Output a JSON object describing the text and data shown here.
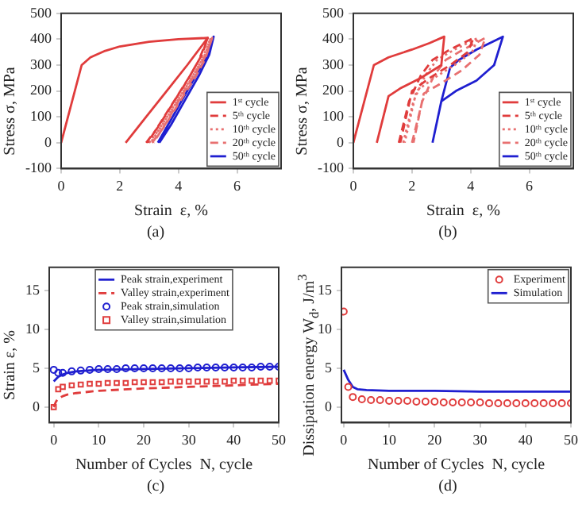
{
  "chart_data": [
    {
      "type": "line",
      "xlabel": "Strain  ε, %",
      "ylabel": "Stress  σ, MPa",
      "annotations": [
        "(a)"
      ],
      "xlim": [
        0,
        7.5
      ],
      "xticks": [
        0,
        2,
        4,
        6
      ],
      "ylim": [
        -100,
        500
      ],
      "yticks": [
        -100,
        0,
        100,
        200,
        300,
        400,
        500
      ],
      "legend": "bottom right",
      "grid": false,
      "series": [
        {
          "name": "1ˢᵗ cycle",
          "color": "#e03c3c",
          "line_style": "solid",
          "x": [
            0,
            0.7,
            1,
            1.5,
            2,
            3,
            4,
            5,
            4.3,
            3.6,
            2.9,
            2.2
          ],
          "values": [
            0,
            300,
            330,
            355,
            372,
            390,
            400,
            405,
            300,
            200,
            100,
            0
          ]
        },
        {
          "name": "5ᵗʰ cycle",
          "color": "#e03c3c",
          "line_style": "dashed",
          "x": [
            2.9,
            3.3,
            3.8,
            4.3,
            4.7,
            5.0,
            4.8,
            4.4,
            3.9,
            3.4,
            2.95
          ],
          "values": [
            0,
            60,
            150,
            240,
            320,
            405,
            340,
            260,
            170,
            80,
            0
          ]
        },
        {
          "name": "10ᵗʰ cycle",
          "color": "#e87070",
          "line_style": "dotted",
          "x": [
            3.0,
            3.4,
            3.9,
            4.4,
            4.8,
            5.1,
            4.9,
            4.5,
            4.0,
            3.5,
            3.05
          ],
          "values": [
            0,
            60,
            150,
            240,
            320,
            405,
            340,
            260,
            170,
            80,
            0
          ]
        },
        {
          "name": "20ᵗʰ cycle",
          "color": "#e87070",
          "line_style": "dashed",
          "x": [
            3.1,
            3.5,
            4.0,
            4.5,
            4.9,
            5.15,
            4.95,
            4.55,
            4.05,
            3.6,
            3.15
          ],
          "values": [
            0,
            60,
            150,
            240,
            320,
            405,
            340,
            260,
            170,
            80,
            0
          ]
        },
        {
          "name": "50ᵗʰ cycle",
          "color": "#1f1fd0",
          "line_style": "solid",
          "x": [
            3.3,
            3.7,
            4.2,
            4.6,
            5.0,
            5.2,
            5.05,
            4.7,
            4.2,
            3.75,
            3.35
          ],
          "values": [
            0,
            80,
            180,
            260,
            340,
            410,
            340,
            260,
            160,
            70,
            0
          ]
        }
      ]
    },
    {
      "type": "line",
      "xlabel": "Strain  ε, %",
      "ylabel": "Stress  σ, MPa",
      "annotations": [
        "(b)"
      ],
      "xlim": [
        0,
        7.5
      ],
      "xticks": [
        0,
        2,
        4,
        6
      ],
      "ylim": [
        -100,
        500
      ],
      "yticks": [
        -100,
        0,
        100,
        200,
        300,
        400,
        500
      ],
      "legend": "bottom right",
      "grid": false,
      "series": [
        {
          "name": "1ˢᵗ cycle",
          "color": "#e03c3c",
          "line_style": "solid",
          "x": [
            0,
            0.7,
            1.2,
            2,
            2.6,
            3.1,
            3.0,
            2.3,
            1.6,
            1.2,
            0.8
          ],
          "values": [
            0,
            300,
            330,
            360,
            385,
            410,
            300,
            250,
            210,
            180,
            0
          ]
        },
        {
          "name": "5ᵗʰ cycle",
          "color": "#e03c3c",
          "line_style": "dashed",
          "x": [
            1.55,
            1.9,
            2.3,
            2.7,
            3.3,
            4.1,
            3.9,
            3.3,
            2.6,
            2.0,
            1.6
          ],
          "values": [
            0,
            160,
            260,
            320,
            360,
            405,
            350,
            300,
            250,
            200,
            0
          ]
        },
        {
          "name": "10ᵗʰ cycle",
          "color": "#e87070",
          "line_style": "dotted",
          "x": [
            1.7,
            2.05,
            2.45,
            2.85,
            3.45,
            4.25,
            4.05,
            3.45,
            2.75,
            2.15,
            1.75
          ],
          "values": [
            0,
            160,
            260,
            320,
            360,
            405,
            350,
            300,
            250,
            200,
            0
          ]
        },
        {
          "name": "20ᵗʰ cycle",
          "color": "#e87070",
          "line_style": "dashed",
          "x": [
            2.0,
            2.35,
            2.75,
            3.15,
            3.75,
            4.5,
            4.3,
            3.7,
            3.0,
            2.4,
            2.05
          ],
          "values": [
            0,
            160,
            260,
            320,
            360,
            405,
            340,
            280,
            230,
            190,
            0
          ]
        },
        {
          "name": "50ᵗʰ cycle",
          "color": "#1f1fd0",
          "line_style": "solid",
          "x": [
            2.7,
            3.0,
            3.3,
            3.6,
            4.2,
            5.1,
            4.8,
            4.2,
            3.5,
            3.0
          ],
          "values": [
            0,
            160,
            290,
            320,
            360,
            410,
            300,
            240,
            200,
            160
          ]
        }
      ]
    },
    {
      "type": "line",
      "xlabel": "Number of Cycles  N, cycle",
      "ylabel": "Strain  ε, %",
      "annotations": [
        "(c)"
      ],
      "xlim": [
        -1,
        50
      ],
      "xticks": [
        0,
        10,
        20,
        30,
        40,
        50
      ],
      "ylim": [
        -2,
        18
      ],
      "yticks": [
        0,
        5,
        10,
        15
      ],
      "legend": "top",
      "grid": false,
      "series": [
        {
          "name": "Peak strain,experiment",
          "color": "#1f1fd0",
          "type": "line",
          "line_style": "solid",
          "marker": "none",
          "x": [
            0,
            1,
            2,
            3,
            5,
            10,
            20,
            30,
            40,
            50
          ],
          "values": [
            3.3,
            3.9,
            4.2,
            4.4,
            4.6,
            4.8,
            4.9,
            5.0,
            5.1,
            5.2
          ]
        },
        {
          "name": "Valley strain,experiment",
          "color": "#e03c3c",
          "type": "line",
          "line_style": "dashed",
          "marker": "none",
          "x": [
            0,
            0.5,
            1,
            2,
            3,
            5,
            10,
            20,
            30,
            40,
            50
          ],
          "values": [
            0,
            0.7,
            1.1,
            1.4,
            1.6,
            1.8,
            2.1,
            2.4,
            2.6,
            2.8,
            3.0
          ]
        },
        {
          "name": "Peak strain,simulation",
          "color": "#1f1fd0",
          "type": "scatter",
          "marker": "circle",
          "x": [
            0,
            1,
            2,
            4,
            6,
            8,
            10,
            12,
            14,
            16,
            18,
            20,
            22,
            24,
            26,
            28,
            30,
            32,
            34,
            36,
            38,
            40,
            42,
            44,
            46,
            48,
            50
          ],
          "values": [
            4.8,
            4.4,
            4.4,
            4.6,
            4.7,
            4.8,
            4.9,
            4.9,
            4.9,
            5.0,
            5.0,
            5.0,
            5.0,
            5.0,
            5.0,
            5.0,
            5.0,
            5.1,
            5.1,
            5.1,
            5.1,
            5.1,
            5.1,
            5.1,
            5.2,
            5.2,
            5.2
          ]
        },
        {
          "name": "Valley strain,simulation",
          "color": "#e03c3c",
          "type": "scatter",
          "marker": "square",
          "x": [
            0,
            1,
            2,
            4,
            6,
            8,
            10,
            12,
            14,
            16,
            18,
            20,
            22,
            24,
            26,
            28,
            30,
            32,
            34,
            36,
            38,
            40,
            42,
            44,
            46,
            48,
            50
          ],
          "values": [
            0,
            2.3,
            2.6,
            2.8,
            2.9,
            3.0,
            3.0,
            3.1,
            3.1,
            3.1,
            3.2,
            3.2,
            3.2,
            3.2,
            3.3,
            3.3,
            3.3,
            3.3,
            3.3,
            3.3,
            3.3,
            3.4,
            3.4,
            3.4,
            3.4,
            3.4,
            3.4
          ]
        }
      ]
    },
    {
      "type": "line",
      "xlabel": "Number of Cycles  N, cycle",
      "ylabel": "Dissipation energy W$_{d}$, J/m$^{3}$",
      "annotations": [
        "(d)"
      ],
      "xlim": [
        -0.5,
        50
      ],
      "xticks": [
        0,
        10,
        20,
        30,
        40,
        50
      ],
      "ylim": [
        -2,
        18
      ],
      "yticks": [
        0,
        5,
        10,
        15
      ],
      "legend": "top right",
      "grid": false,
      "series": [
        {
          "name": "Experiment",
          "color": "#e03c3c",
          "type": "scatter",
          "marker": "circle",
          "x": [
            0,
            1,
            2,
            4,
            6,
            8,
            10,
            12,
            14,
            16,
            18,
            20,
            22,
            24,
            26,
            28,
            30,
            32,
            34,
            36,
            38,
            40,
            42,
            44,
            46,
            48,
            50
          ],
          "values": [
            12.3,
            2.6,
            1.3,
            1.0,
            0.9,
            0.9,
            0.8,
            0.8,
            0.8,
            0.7,
            0.7,
            0.7,
            0.6,
            0.6,
            0.6,
            0.6,
            0.6,
            0.5,
            0.5,
            0.5,
            0.5,
            0.5,
            0.5,
            0.5,
            0.5,
            0.5,
            0.5
          ]
        },
        {
          "name": "Simulation",
          "color": "#1f1fd0",
          "type": "line",
          "line_style": "solid",
          "marker": "none",
          "x": [
            0,
            1,
            2,
            3,
            5,
            10,
            20,
            30,
            40,
            50
          ],
          "values": [
            4.8,
            3.5,
            2.6,
            2.3,
            2.2,
            2.1,
            2.1,
            2.0,
            2.0,
            2.0
          ]
        }
      ]
    }
  ]
}
